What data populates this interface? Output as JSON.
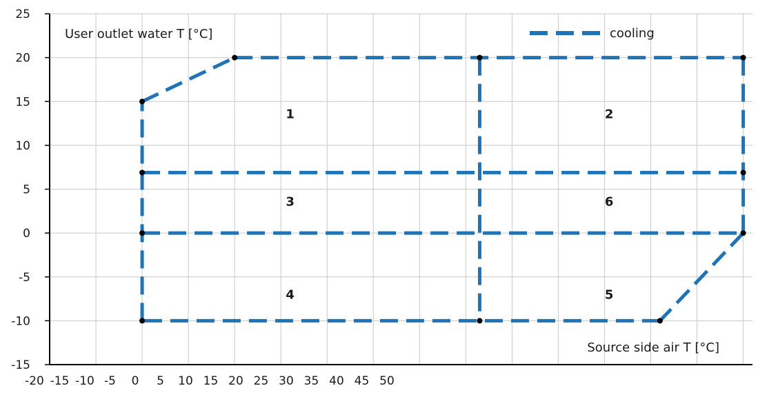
{
  "chart_data": {
    "type": "line",
    "title": "",
    "xlabel": "Source side air T [°C]",
    "ylabel": "User outlet water T [°C]",
    "xlim": [
      -20,
      56
    ],
    "ylim": [
      -15,
      25
    ],
    "grid": true,
    "x_ticks": [
      "-20",
      "-15",
      "-10",
      "-5",
      "0",
      "5",
      "10",
      "15",
      "20",
      "25",
      "30",
      "35",
      "40",
      "45",
      "50"
    ],
    "y_ticks": [
      "25",
      "20",
      "15",
      "10",
      "5",
      "0",
      "-5",
      "-10",
      "-15"
    ],
    "x_tick_values": [
      -20,
      -15,
      -10,
      -5,
      0,
      5,
      10,
      15,
      20,
      25,
      30,
      35,
      40,
      45,
      50
    ],
    "y_tick_values": [
      25,
      20,
      15,
      10,
      5,
      0,
      -5,
      -10,
      -15
    ],
    "legend": {
      "position": "top-right",
      "label": "cooling",
      "color": "#1f73b7"
    },
    "series": [
      {
        "name": "cooling",
        "color": "#1f73b7",
        "style": "dashed",
        "segments": [
          [
            [
              -10,
              15
            ],
            [
              0,
              20
            ]
          ],
          [
            [
              0,
              20
            ],
            [
              55,
              20
            ]
          ],
          [
            [
              55,
              20
            ],
            [
              55,
              0
            ]
          ],
          [
            [
              55,
              0
            ],
            [
              46,
              -10
            ]
          ],
          [
            [
              46,
              -10
            ],
            [
              -10,
              -10
            ]
          ],
          [
            [
              -10,
              -10
            ],
            [
              -10,
              15
            ]
          ],
          [
            [
              -10,
              6.9
            ],
            [
              55,
              6.9
            ]
          ],
          [
            [
              -10,
              0
            ],
            [
              55,
              0
            ]
          ],
          [
            [
              26.5,
              20
            ],
            [
              26.5,
              -10
            ]
          ]
        ]
      }
    ],
    "markers": [
      [
        -10,
        15
      ],
      [
        0,
        20
      ],
      [
        26.5,
        20
      ],
      [
        55,
        20
      ],
      [
        -10,
        6.9
      ],
      [
        55,
        6.9
      ],
      [
        -10,
        0
      ],
      [
        55,
        0
      ],
      [
        -10,
        -10
      ],
      [
        26.5,
        -10
      ],
      [
        46,
        -10
      ]
    ],
    "regions": [
      {
        "label": "1",
        "x": 6,
        "y": 13.1
      },
      {
        "label": "2",
        "x": 40.5,
        "y": 13.1
      },
      {
        "label": "3",
        "x": 6,
        "y": 3.1
      },
      {
        "label": "6",
        "x": 40.5,
        "y": 3.1
      },
      {
        "label": "4",
        "x": 6,
        "y": -7.5
      },
      {
        "label": "5",
        "x": 40.5,
        "y": -7.5
      }
    ]
  }
}
